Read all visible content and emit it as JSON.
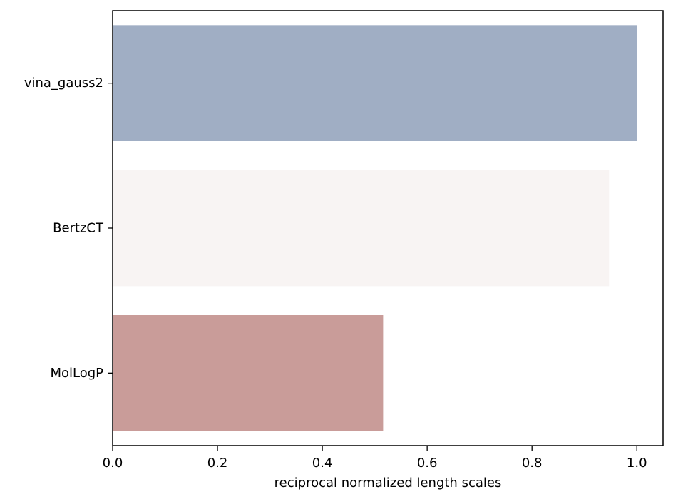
{
  "chart_data": {
    "type": "bar",
    "orientation": "horizontal",
    "title": "",
    "xlabel": "reciprocal normalized length scales",
    "ylabel": "",
    "categories": [
      "vina_gauss2",
      "BertzCT",
      "MolLogP"
    ],
    "values": [
      1.0,
      0.947,
      0.516
    ],
    "colors": [
      "#a0aec4",
      "#f8f4f3",
      "#c99c99"
    ],
    "xlim": [
      0.0,
      1.05
    ],
    "xticks": [
      0.0,
      0.2,
      0.4,
      0.6,
      0.8,
      1.0
    ],
    "xtick_labels": [
      "0.0",
      "0.2",
      "0.4",
      "0.6",
      "0.8",
      "1.0"
    ],
    "grid": false,
    "legend": false
  }
}
